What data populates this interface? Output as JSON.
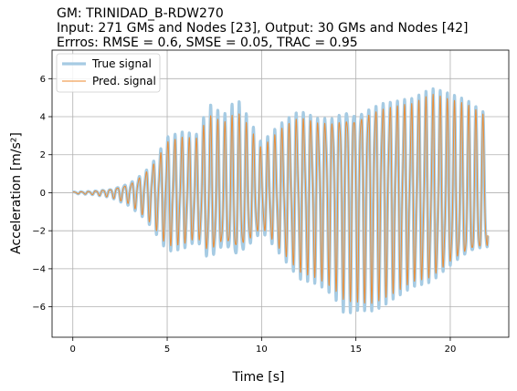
{
  "chart_data": {
    "type": "line",
    "title_lines": [
      "GM: TRINIDAD_B-RDW270",
      "Input: 271 GMs and Nodes [23], Output: 30 GMs and Nodes [42]",
      "Errros: RMSE = 0.6, SMSE = 0.05, TRAC = 0.95"
    ],
    "xlabel": "Time [s]",
    "ylabel": "Acceleration [m/s²]",
    "xlim": [
      -1.1,
      23.1
    ],
    "ylim": [
      -7.6,
      7.5
    ],
    "xticks": [
      0,
      5,
      10,
      15,
      20
    ],
    "yticks": [
      -6,
      -4,
      -2,
      0,
      2,
      4,
      6
    ],
    "grid": true,
    "legend_position": "top-left",
    "series": [
      {
        "name": "True signal",
        "color": "#a6cbe3",
        "envelope": [
          [
            0,
            0.05
          ],
          [
            1,
            0.1
          ],
          [
            2,
            0.25
          ],
          [
            3,
            0.7
          ],
          [
            3.8,
            1.4
          ],
          [
            4.3,
            2.1
          ],
          [
            5,
            3.4
          ],
          [
            5.8,
            3.5
          ],
          [
            6.6,
            3.2
          ],
          [
            7.2,
            4.8
          ],
          [
            8,
            4.1
          ],
          [
            8.7,
            5.0
          ],
          [
            9.3,
            4.0
          ],
          [
            10,
            2.7
          ],
          [
            11,
            3.9
          ],
          [
            12,
            5.0
          ],
          [
            13,
            5.0
          ],
          [
            13.8,
            5.5
          ],
          [
            14.4,
            6.4
          ],
          [
            15.2,
            6.2
          ],
          [
            15.8,
            6.3
          ],
          [
            16.4,
            6.2
          ],
          [
            17,
            5.9
          ],
          [
            18,
            5.6
          ],
          [
            19,
            5.8
          ],
          [
            20,
            5.3
          ],
          [
            21,
            4.8
          ],
          [
            22,
            4.1
          ]
        ],
        "period": 0.38
      },
      {
        "name": "Pred. signal",
        "color": "#ee8a2d",
        "envelope": [
          [
            0,
            0.05
          ],
          [
            1,
            0.1
          ],
          [
            2,
            0.25
          ],
          [
            3,
            0.6
          ],
          [
            3.8,
            1.3
          ],
          [
            4.3,
            1.9
          ],
          [
            5,
            3.1
          ],
          [
            5.8,
            3.2
          ],
          [
            6.6,
            3.0
          ],
          [
            7.2,
            4.2
          ],
          [
            8,
            3.7
          ],
          [
            8.7,
            4.3
          ],
          [
            9.3,
            3.6
          ],
          [
            10,
            2.4
          ],
          [
            11,
            3.6
          ],
          [
            12,
            4.6
          ],
          [
            13,
            4.7
          ],
          [
            13.8,
            5.1
          ],
          [
            14.4,
            5.7
          ],
          [
            15.2,
            5.8
          ],
          [
            15.8,
            5.9
          ],
          [
            16.4,
            5.8
          ],
          [
            17,
            5.6
          ],
          [
            18,
            5.3
          ],
          [
            19,
            5.5
          ],
          [
            20,
            5.0
          ],
          [
            21,
            4.6
          ],
          [
            22,
            4.0
          ]
        ],
        "period": 0.38
      }
    ]
  }
}
